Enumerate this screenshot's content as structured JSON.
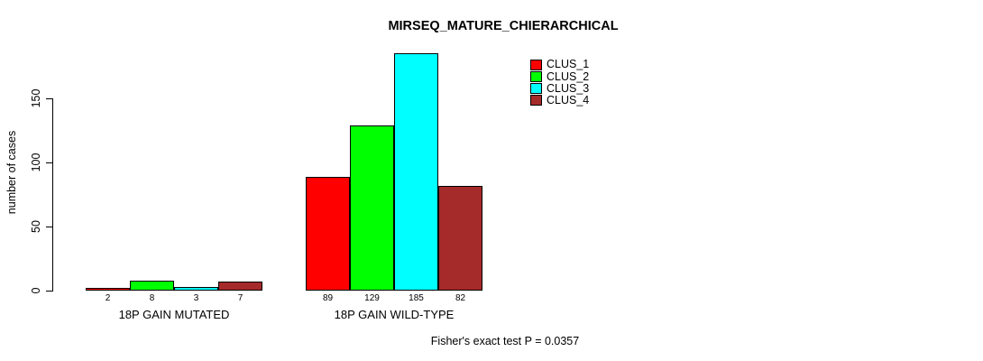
{
  "title": "MIRSEQ_MATURE_CHIERARCHICAL",
  "footer": "Fisher's exact test P = 0.0357",
  "chart_data": {
    "type": "bar",
    "title": "MIRSEQ_MATURE_CHIERARCHICAL",
    "xlabel": "",
    "ylabel": "number of cases",
    "categories": [
      "18P GAIN MUTATED",
      "18P GAIN WILD-TYPE"
    ],
    "series": [
      {
        "name": "CLUS_1",
        "color": "#FF0000",
        "values": [
          2,
          89
        ]
      },
      {
        "name": "CLUS_2",
        "color": "#00FF00",
        "values": [
          8,
          129
        ]
      },
      {
        "name": "CLUS_3",
        "color": "#00FFFF",
        "values": [
          3,
          185
        ]
      },
      {
        "name": "CLUS_4",
        "color": "#A52A2A",
        "values": [
          7,
          82
        ]
      }
    ],
    "yticks": [
      0,
      50,
      100,
      150
    ],
    "ylim": [
      0,
      190
    ],
    "grid": false,
    "bar_value_labels": true,
    "legend_position": "top-right",
    "annotation": "Fisher's exact test P = 0.0357"
  }
}
